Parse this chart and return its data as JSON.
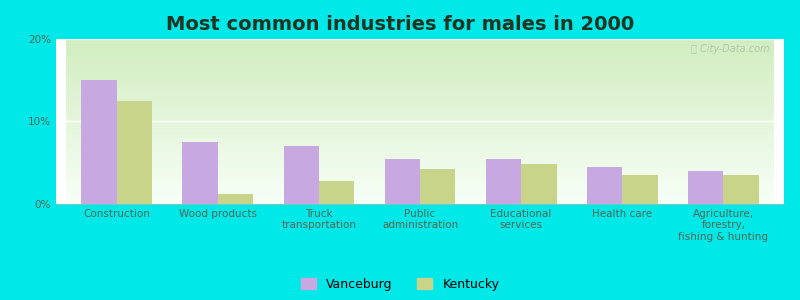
{
  "title": "Most common industries for males in 2000",
  "categories": [
    "Construction",
    "Wood products",
    "Truck\ntransportation",
    "Public\nadministration",
    "Educational\nservices",
    "Health care",
    "Agriculture,\nforestry,\nfishing & hunting"
  ],
  "vanceburg": [
    15.0,
    7.5,
    7.0,
    5.5,
    5.5,
    4.5,
    4.0
  ],
  "kentucky": [
    12.5,
    1.2,
    2.8,
    4.2,
    4.8,
    3.5,
    3.5
  ],
  "vanceburg_color": "#c8a8e0",
  "kentucky_color": "#c8d48a",
  "grad_top_left": "#c8e8c0",
  "grad_bottom_right": "#f8fff8",
  "outer_bg": "#00e8e8",
  "ylim": [
    0,
    20
  ],
  "yticks": [
    0,
    10,
    20
  ],
  "ytick_labels": [
    "0%",
    "10%",
    "20%"
  ],
  "bar_width": 0.35,
  "title_fontsize": 14,
  "tick_fontsize": 7.5,
  "legend_fontsize": 9,
  "watermark": "ⓘ City-Data.com"
}
